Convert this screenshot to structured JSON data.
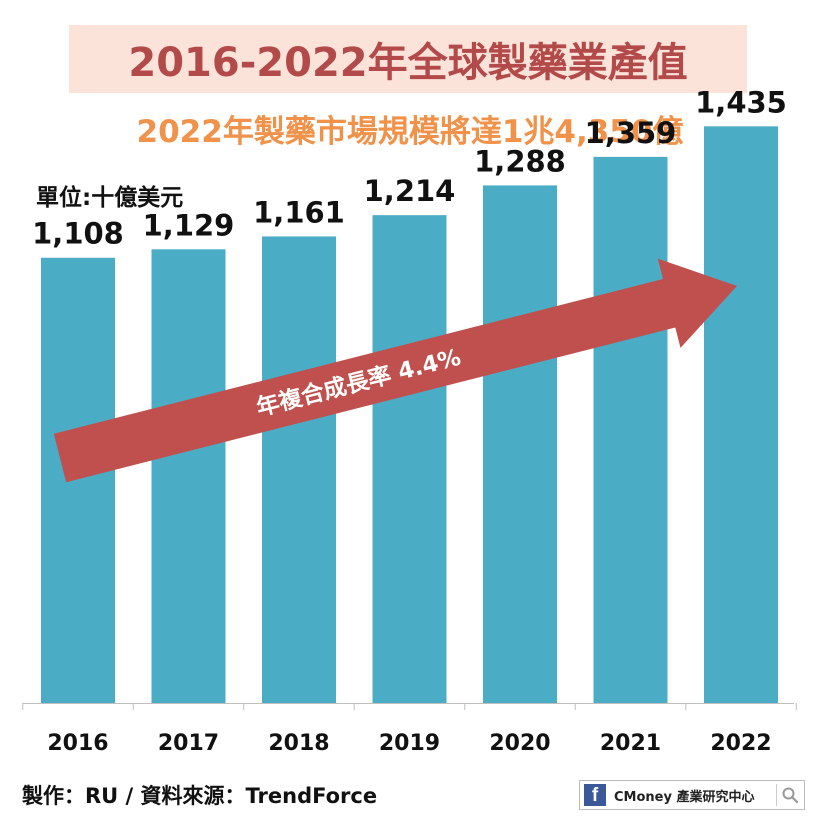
{
  "header": {
    "title": "2016-2022年全球製藥業產值",
    "subtitle": "2022年製藥市場規模將達1兆4,350億",
    "unit_label": "單位:十億美元"
  },
  "chart_data": {
    "type": "bar",
    "categories": [
      "2016",
      "2017",
      "2018",
      "2019",
      "2020",
      "2021",
      "2022"
    ],
    "values": [
      1108,
      1129,
      1161,
      1214,
      1288,
      1359,
      1435
    ],
    "value_labels": [
      "1,108",
      "1,129",
      "1,161",
      "1,214",
      "1,288",
      "1,359",
      "1,435"
    ],
    "ylim": [
      0,
      1620
    ],
    "bar_color": "#4bacc6",
    "annotation": {
      "label": "年複合成長率 4.4%",
      "color": "#c0504d",
      "direction": "increasing trend arrow"
    },
    "grid": false
  },
  "footer": {
    "credit": "製作：RU / 資料來源：TrendForce",
    "brand_text": "CMoney 產業研究中心",
    "icons": [
      "facebook-icon",
      "search-icon"
    ]
  }
}
